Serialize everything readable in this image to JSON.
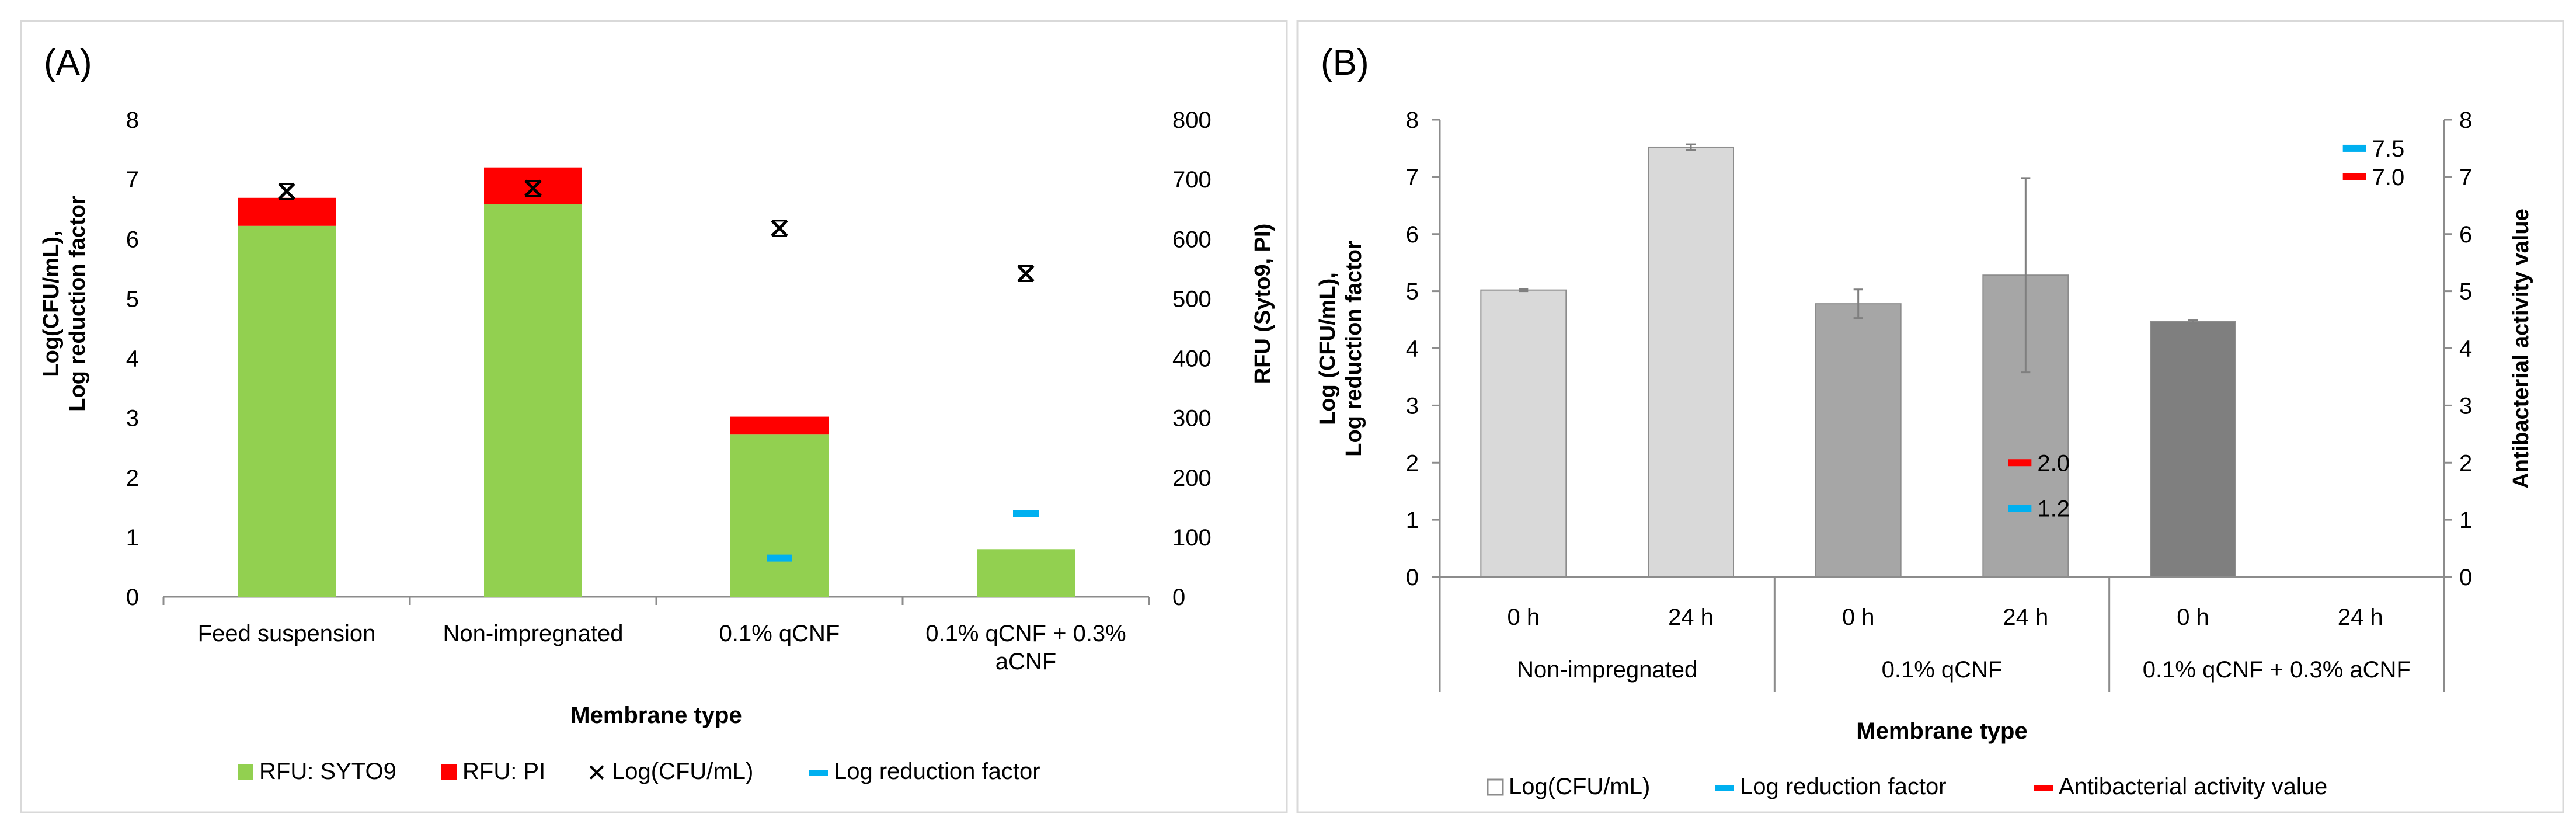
{
  "chart_data": [
    {
      "panel": "(A)",
      "type": "bar",
      "stacked": true,
      "categories": [
        "Feed suspension",
        "Non-impregnated",
        "0.1% qCNF",
        "0.1% qCNF + 0.3% aCNF"
      ],
      "xlabel": "Membrane type",
      "ylabel_line1": "Log(CFU/mL),",
      "ylabel_line2": "Log reduction factor",
      "y2label": "RFU (Syto9, PI)",
      "ylim": [
        0,
        8
      ],
      "y2lim": [
        0,
        800
      ],
      "yticks": [
        "0",
        "1",
        "2",
        "3",
        "4",
        "5",
        "6",
        "7",
        "8"
      ],
      "y2ticks": [
        "0",
        "100",
        "200",
        "300",
        "400",
        "500",
        "600",
        "700",
        "800"
      ],
      "series": [
        {
          "name": "RFU: SYTO9",
          "axis": "right",
          "kind": "bar",
          "color": "#92d050",
          "values": [
            622,
            658,
            272,
            80
          ]
        },
        {
          "name": "RFU: PI",
          "axis": "right",
          "kind": "bar",
          "color": "#ff0000",
          "values": [
            47,
            62,
            30,
            0
          ]
        },
        {
          "name": "Log(CFU/mL)",
          "axis": "left",
          "kind": "marker",
          "color": "#000000",
          "values": [
            6.8,
            6.85,
            6.18,
            5.42
          ]
        },
        {
          "name": "Log reduction factor",
          "axis": "left",
          "kind": "dash",
          "color": "#00b0f0",
          "values": [
            null,
            null,
            0.65,
            1.4
          ]
        }
      ]
    },
    {
      "panel": "(B)",
      "type": "bar",
      "groups": [
        "Non-impregnated",
        "0.1% qCNF",
        "0.1% qCNF + 0.3% aCNF"
      ],
      "categories": [
        "0 h",
        "24 h",
        "0 h",
        "24 h",
        "0 h",
        "24 h"
      ],
      "xlabel": "Membrane type",
      "ylabel_line1": "Log (CFU/mL),",
      "ylabel_line2": "Log reduction factor",
      "y2label": "Antibacterial activity value",
      "ylim": [
        0,
        8
      ],
      "y2lim": [
        0,
        8
      ],
      "yticks": [
        "0",
        "1",
        "2",
        "3",
        "4",
        "5",
        "6",
        "7",
        "8"
      ],
      "y2ticks": [
        "0",
        "1",
        "2",
        "3",
        "4",
        "5",
        "6",
        "7",
        "8"
      ],
      "series": [
        {
          "name": "Log(CFU/mL)",
          "kind": "bar",
          "values": [
            5.02,
            7.52,
            4.78,
            5.28,
            4.47,
            null
          ],
          "errors": [
            0.02,
            0.05,
            0.25,
            1.7,
            0.02,
            null
          ],
          "colors": [
            "#d9d9d9",
            "#d9d9d9",
            "#a6a6a6",
            "#a6a6a6",
            "#7f7f7f",
            "#7f7f7f"
          ]
        },
        {
          "name": "Log reduction factor",
          "kind": "dash",
          "color": "#00b0f0",
          "points": [
            {
              "index": 3,
              "value": 1.2,
              "label": "1.2"
            },
            {
              "index": 5,
              "value": 7.5,
              "label": "7.5"
            }
          ]
        },
        {
          "name": "Antibacterial activity value",
          "kind": "dash",
          "color": "#ff0000",
          "points": [
            {
              "index": 3,
              "value": 2.0,
              "label": "2.0"
            },
            {
              "index": 5,
              "value": 7.0,
              "label": "7.0"
            }
          ]
        }
      ]
    }
  ]
}
